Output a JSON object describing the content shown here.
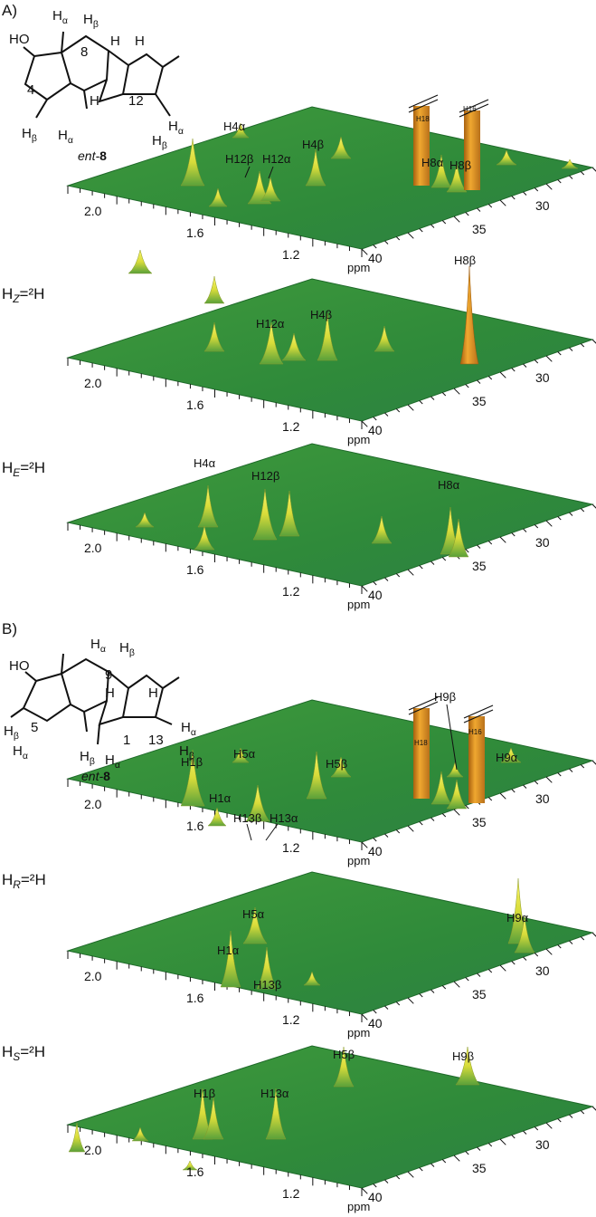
{
  "figure": {
    "panels": [
      {
        "label": "A)",
        "structure": {
          "atoms": [
            {
              "h": "H",
              "sub": "α"
            },
            {
              "h": "H",
              "sub": "β"
            },
            "HO",
            "8",
            "H",
            "H",
            "4",
            "12",
            {
              "h": "H",
              "sub": "β"
            },
            {
              "h": "H",
              "sub": "α"
            },
            "H",
            {
              "h": "H",
              "sub": "α"
            },
            {
              "h": "H",
              "sub": "β"
            }
          ],
          "name": {
            "prefix": "ent-",
            "num": "8"
          }
        },
        "peaks": [
          "H4α",
          "H12β",
          "H12α",
          "H4β",
          "H8α",
          "H8β"
        ],
        "columns": [
          "H18",
          "H16"
        ],
        "x_ticks": [
          "2.0",
          "1.6",
          "1.2"
        ],
        "x_unit": "ppm",
        "y_ticks": [
          "40",
          "35",
          "30"
        ]
      },
      {
        "condition": {
          "h": "H",
          "sub": "Z",
          "rest": "=²H"
        },
        "peaks": [
          "H12α",
          "H4β",
          "H8β"
        ],
        "x_ticks": [
          "2.0",
          "1.6",
          "1.2"
        ],
        "x_unit": "ppm",
        "y_ticks": [
          "40",
          "35",
          "30"
        ]
      },
      {
        "condition": {
          "h": "H",
          "sub": "E",
          "rest": "=²H"
        },
        "peaks": [
          "H4α",
          "H12β",
          "H8α"
        ],
        "x_ticks": [
          "2.0",
          "1.6",
          "1.2"
        ],
        "x_unit": "ppm",
        "y_ticks": [
          "40",
          "35",
          "30"
        ]
      },
      {
        "label": "B)",
        "structure": {
          "atoms": [
            {
              "h": "H",
              "sub": "α"
            },
            {
              "h": "H",
              "sub": "β"
            },
            "HO",
            "9",
            "H",
            "H",
            "5",
            "1",
            "13",
            {
              "h": "H",
              "sub": "β"
            },
            {
              "h": "H",
              "sub": "α"
            },
            {
              "h": "H",
              "sub": "β"
            },
            {
              "h": "H",
              "sub": "α"
            },
            {
              "h": "H",
              "sub": "α"
            },
            {
              "h": "H",
              "sub": "β"
            }
          ],
          "name": {
            "prefix": "ent-",
            "num": "8"
          }
        },
        "peaks": [
          "H1β",
          "H5α",
          "H5β",
          "H1α",
          "H13β",
          "H13α",
          "H9β",
          "H9α"
        ],
        "columns": [
          "H18",
          "H16"
        ],
        "x_ticks": [
          "2.0",
          "1.6",
          "1.2"
        ],
        "x_unit": "ppm",
        "y_ticks": [
          "40",
          "35",
          "30"
        ]
      },
      {
        "condition": {
          "h": "H",
          "sub": "R",
          "rest": "=²H"
        },
        "peaks": [
          "H5α",
          "H1α",
          "H13β",
          "H9α"
        ],
        "x_ticks": [
          "2.0",
          "1.6",
          "1.2"
        ],
        "x_unit": "ppm",
        "y_ticks": [
          "40",
          "35",
          "30"
        ]
      },
      {
        "condition": {
          "h": "H",
          "sub": "S",
          "rest": "=²H"
        },
        "peaks": [
          "H1β",
          "H13α",
          "H5β",
          "H9β"
        ],
        "x_ticks": [
          "2.0",
          "1.6",
          "1.2"
        ],
        "x_unit": "ppm",
        "y_ticks": [
          "40",
          "35",
          "30"
        ]
      }
    ]
  }
}
